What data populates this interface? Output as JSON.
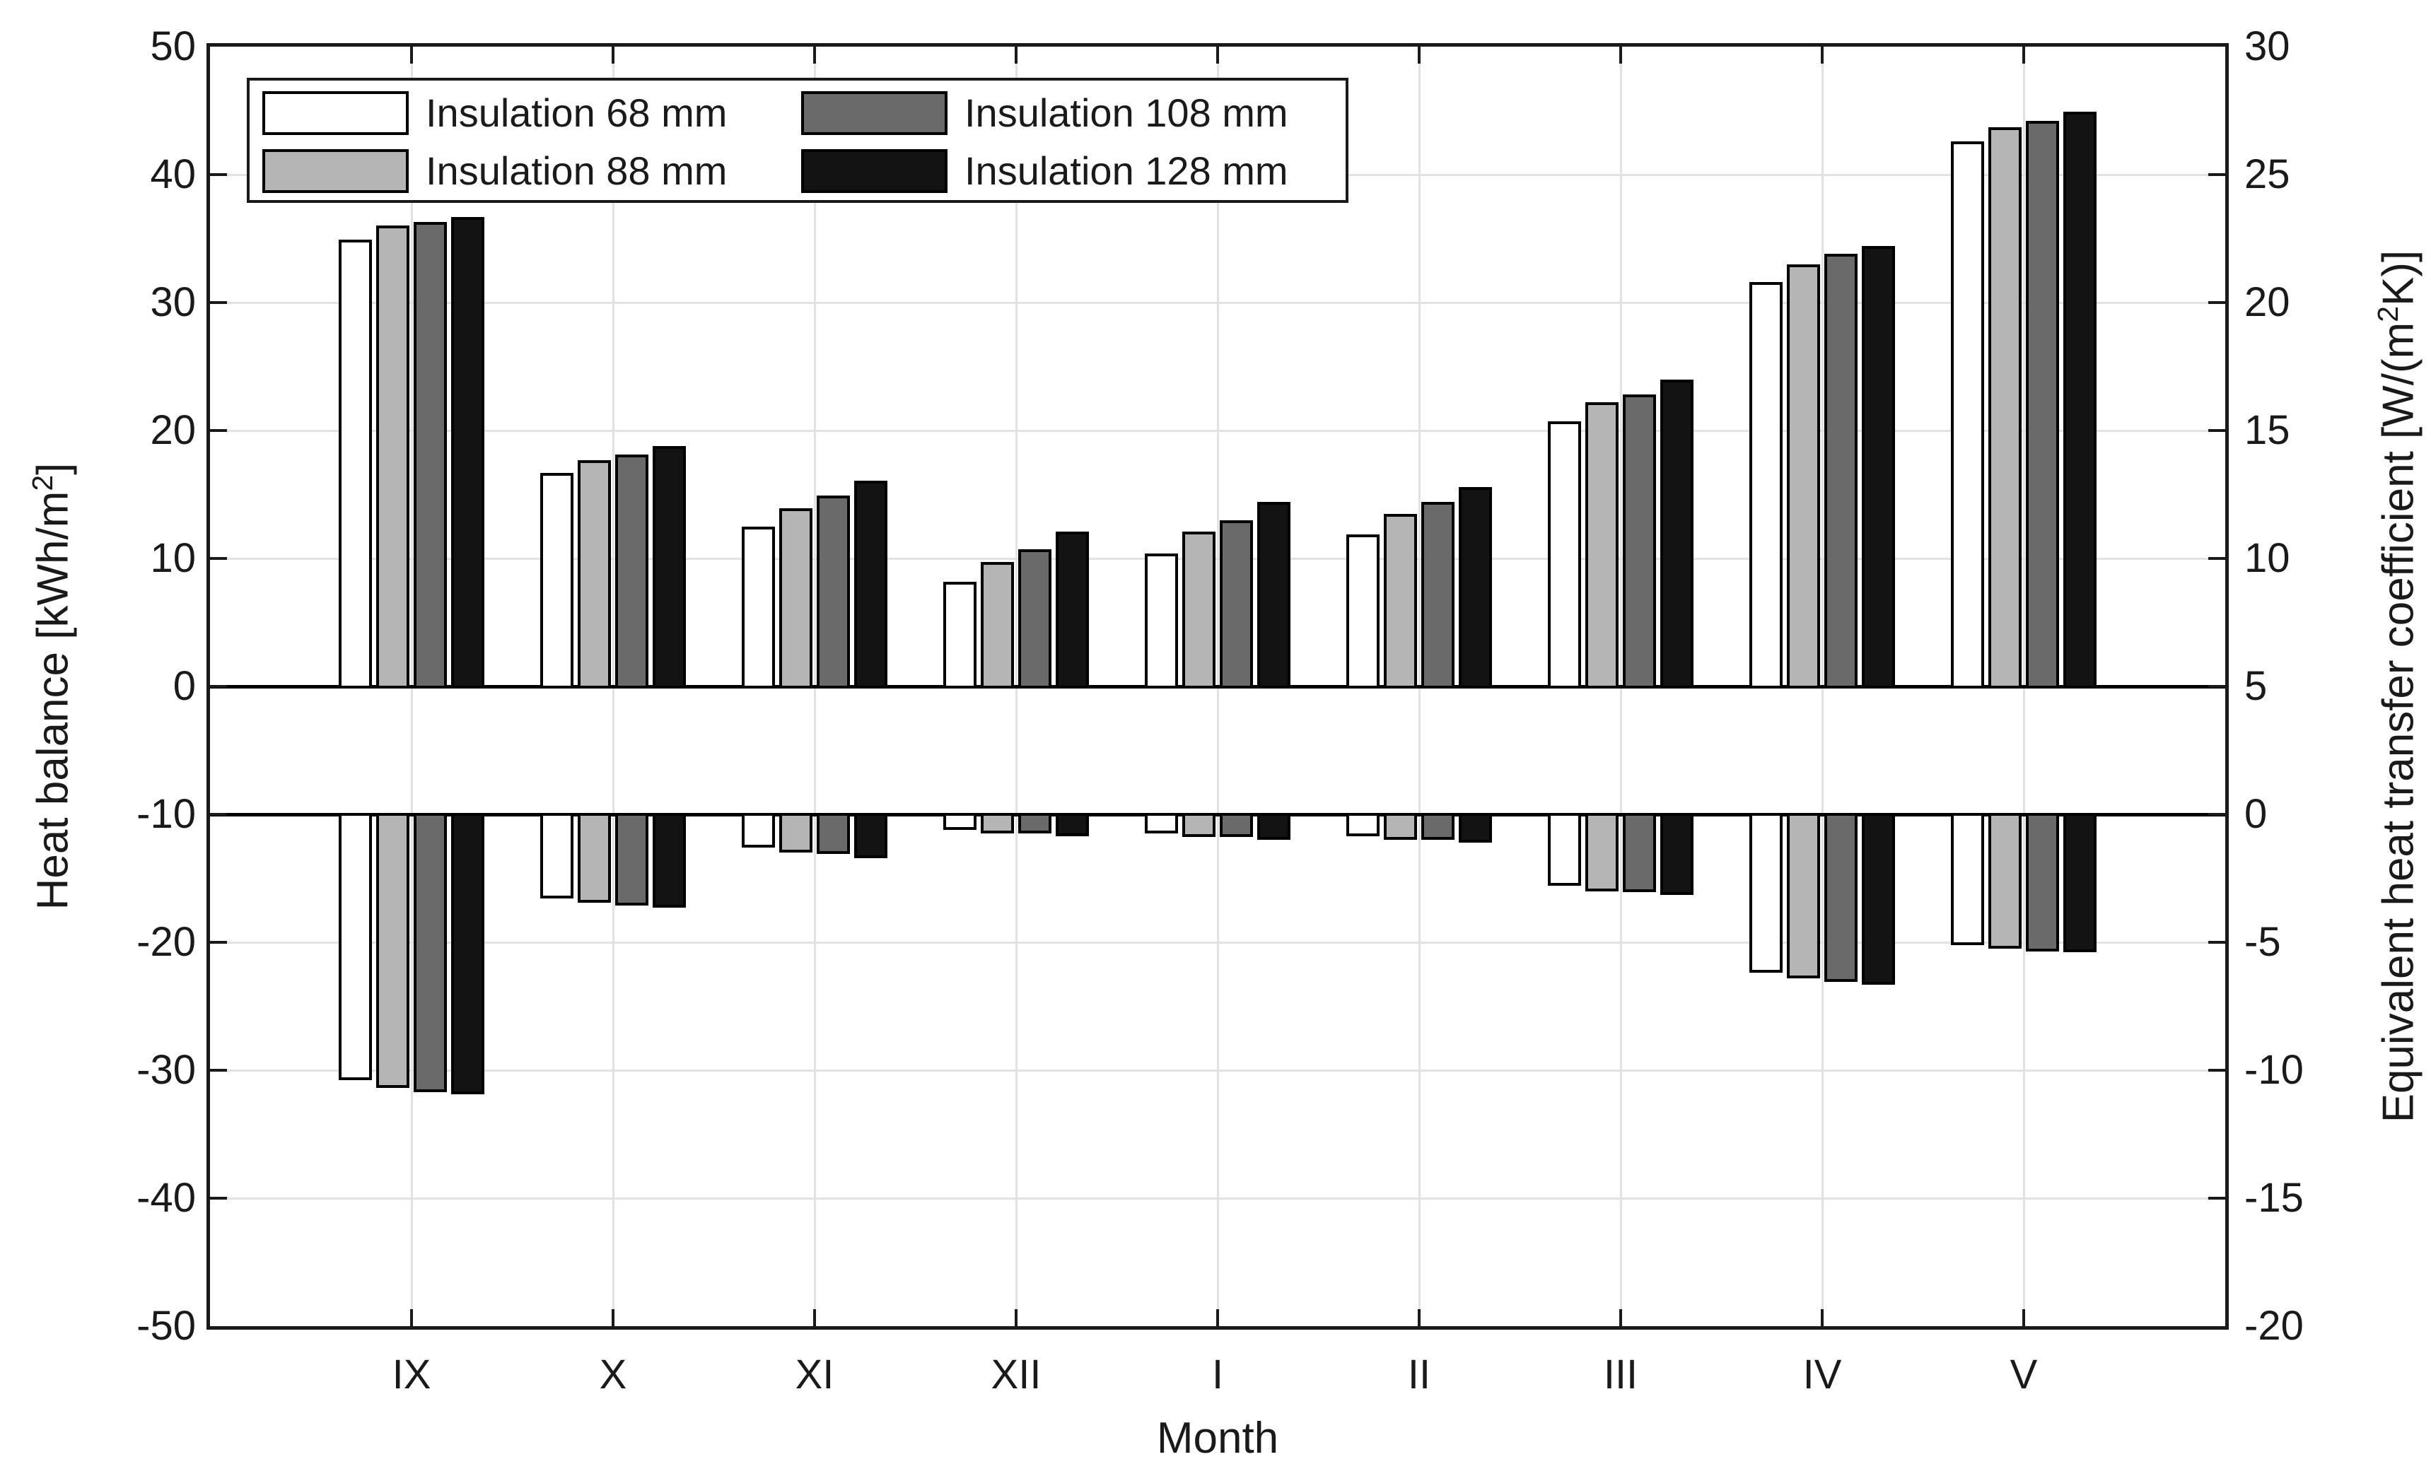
{
  "chart_data": {
    "type": "bar",
    "title": "",
    "xlabel": "Month",
    "categories": [
      "IX",
      "X",
      "XI",
      "XII",
      "I",
      "II",
      "III",
      "IV",
      "V"
    ],
    "left_axis": {
      "title_pre": "Heat balance [kWh/m",
      "title_sup": "2",
      "title_post": "]",
      "range": [
        -50,
        50
      ],
      "ticks": [
        50,
        40,
        30,
        20,
        10,
        0,
        -10,
        -20,
        -30,
        -40,
        -50
      ]
    },
    "right_axis": {
      "title_pre": "Equivalent heat transfer coefficient [W/(m",
      "title_sup": "2",
      "title_post": "K)]",
      "range": [
        -20,
        30
      ],
      "ticks": [
        30,
        25,
        20,
        15,
        10,
        5,
        0,
        -5,
        -10,
        -15,
        -20
      ]
    },
    "axis_mapping_note": "right = left/2 + 5; positive bars rise from left-axis 0, negative bars hang from right-axis 0 (= left-axis -10)",
    "grid": "on",
    "legend_position": "top-left, 2 columns",
    "series": [
      {
        "label": "Insulation 68 mm",
        "color": "#ffffff",
        "heat_balance_gain_kwh_m2": [
          34.9,
          16.7,
          12.5,
          8.2,
          10.4,
          11.9,
          20.7,
          31.6,
          42.6
        ],
        "equiv_heat_transfer_coeff_w_m2k": [
          -10.4,
          -3.3,
          -1.3,
          -0.6,
          -0.75,
          -0.85,
          -2.8,
          -6.2,
          -5.1
        ]
      },
      {
        "label": "Insulation 88 mm",
        "color": "#b5b5b5",
        "heat_balance_gain_kwh_m2": [
          36.0,
          17.7,
          13.9,
          9.7,
          12.1,
          13.5,
          22.2,
          33.0,
          43.7
        ],
        "equiv_heat_transfer_coeff_w_m2k": [
          -10.7,
          -3.45,
          -1.5,
          -0.75,
          -0.88,
          -1.0,
          -3.0,
          -6.4,
          -5.25
        ]
      },
      {
        "label": "Insulation 108 mm",
        "color": "#6a6a6a",
        "heat_balance_gain_kwh_m2": [
          36.3,
          18.1,
          14.9,
          10.7,
          13.0,
          14.4,
          22.8,
          33.8,
          44.2
        ],
        "equiv_heat_transfer_coeff_w_m2k": [
          -10.85,
          -3.55,
          -1.55,
          -0.75,
          -0.88,
          -1.0,
          -3.05,
          -6.55,
          -5.35
        ]
      },
      {
        "label": "Insulation 128 mm",
        "color": "#131313",
        "heat_balance_gain_kwh_m2": [
          36.7,
          18.8,
          16.1,
          12.1,
          14.4,
          15.6,
          24.0,
          34.4,
          44.9
        ],
        "equiv_heat_transfer_coeff_w_m2k": [
          -10.95,
          -3.65,
          -1.7,
          -0.85,
          -1.0,
          -1.1,
          -3.15,
          -6.65,
          -5.4
        ]
      }
    ]
  }
}
